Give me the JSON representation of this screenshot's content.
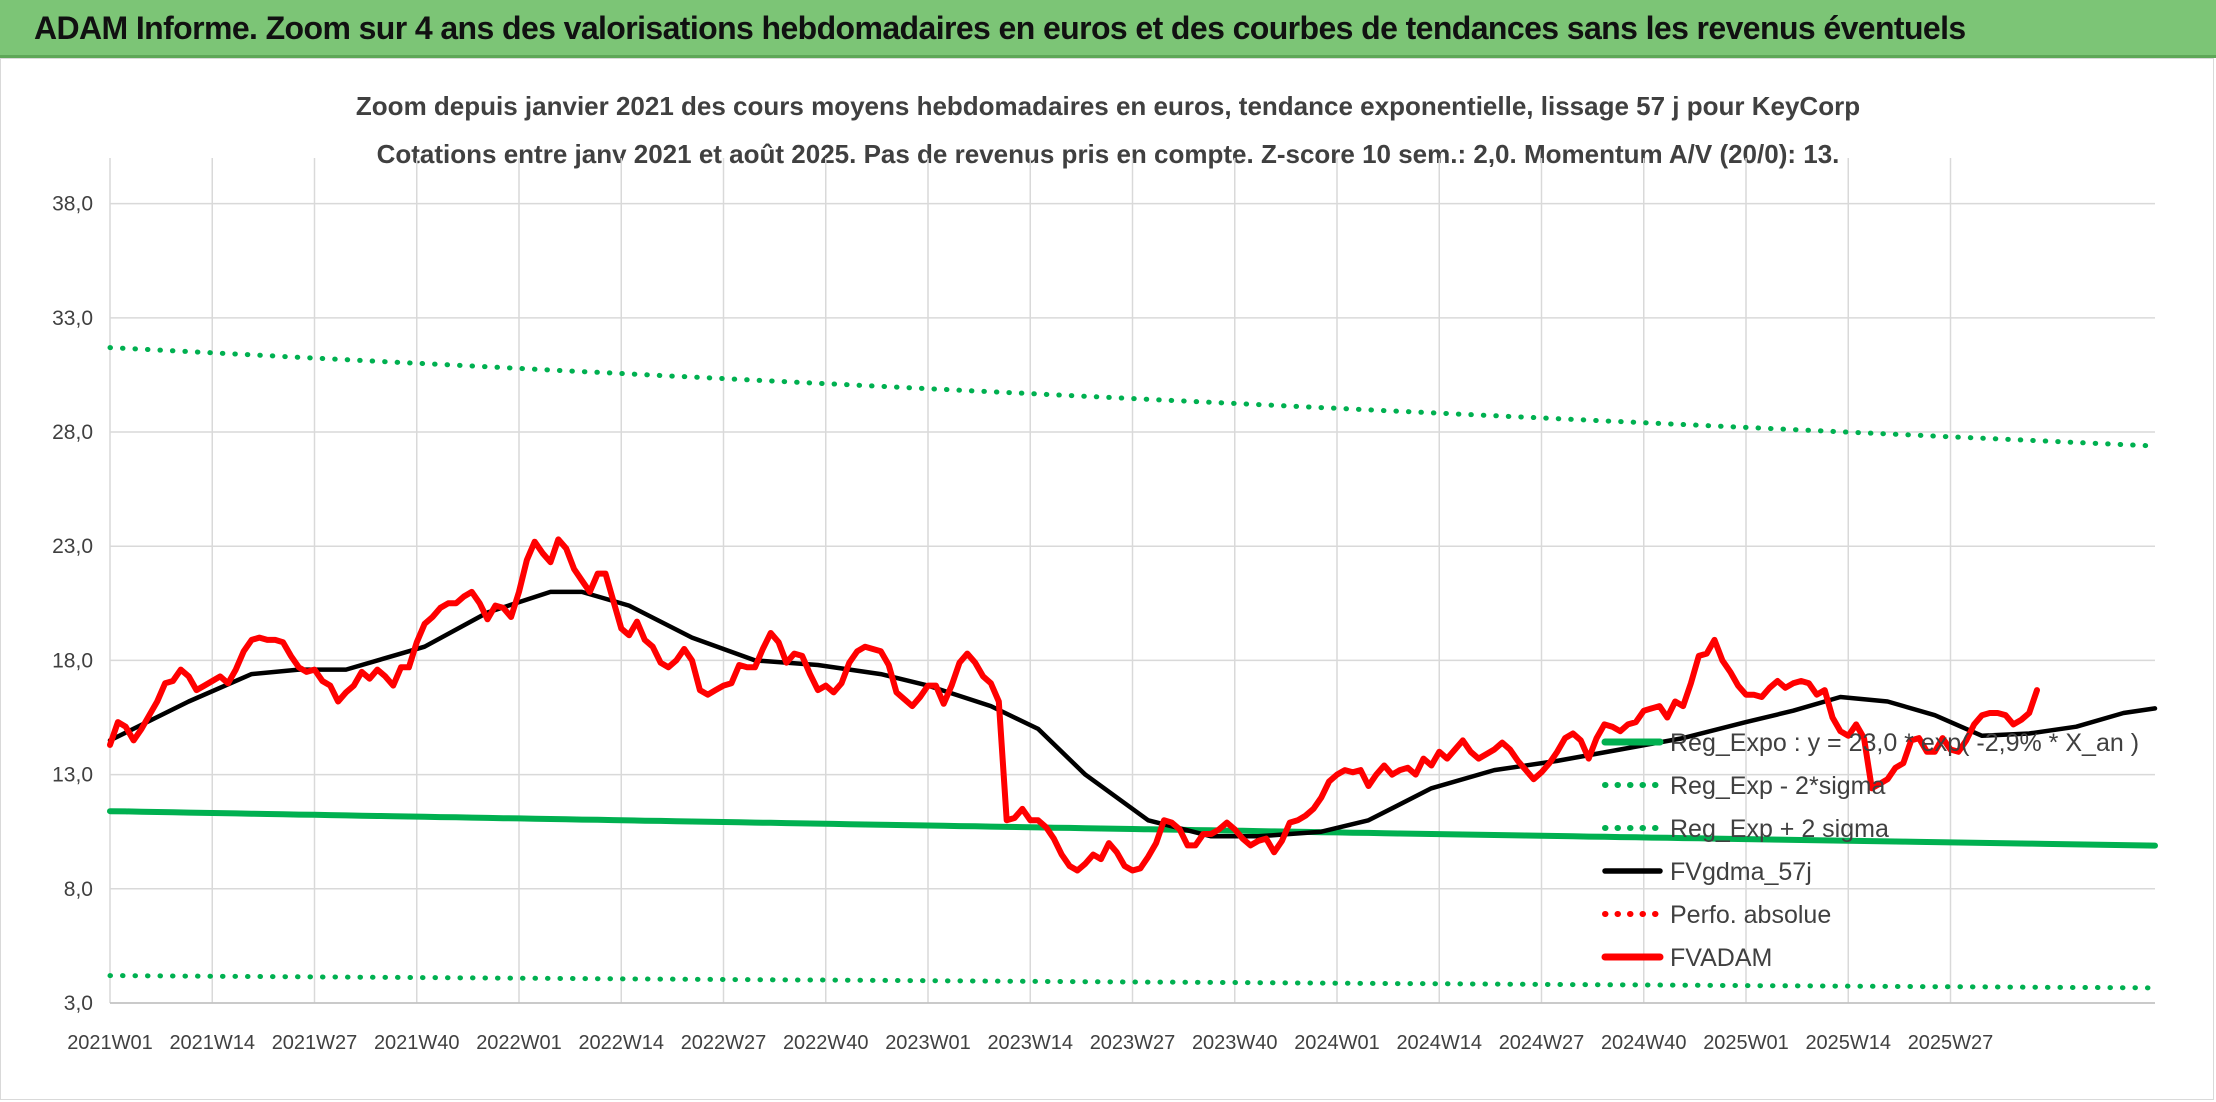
{
  "page": {
    "banner_title": "ADAM Informe. Zoom sur 4 ans des valorisations hebdomadaires en euros et des courbes de tendances sans les revenus éventuels"
  },
  "chart_data": {
    "type": "line",
    "title_line1": "Zoom depuis janvier 2021 des cours moyens hebdomadaires en euros, tendance exponentielle, lissage 57 j pour KeyCorp",
    "title_line2": "Cotations entre janv 2021 et août 2025. Pas de revenus pris en compte. Z-score 10 sem.: 2,0. Momentum A/V (20/0): 13.",
    "xlabel": "",
    "ylabel": "",
    "ylim": [
      3.0,
      40.0
    ],
    "y_ticks": [
      3.0,
      8.0,
      13.0,
      18.0,
      23.0,
      28.0,
      33.0,
      38.0
    ],
    "y_tick_labels": [
      "3,0",
      "8,0",
      "13,0",
      "18,0",
      "23,0",
      "28,0",
      "33,0",
      "38,0"
    ],
    "x_ticks": [
      "2021W01",
      "2021W14",
      "2021W27",
      "2021W40",
      "2022W01",
      "2022W14",
      "2022W27",
      "2022W40",
      "2023W01",
      "2023W14",
      "2023W27",
      "2023W40",
      "2024W01",
      "2024W14",
      "2024W27",
      "2024W40",
      "2025W01",
      "2025W14",
      "2025W27"
    ],
    "grid": true,
    "legend_position": "right",
    "series": [
      {
        "name": "Reg_Expo : y = 23,0 * exp( -2,9% * X_an )",
        "color": "#00b050",
        "style": "solid-thick",
        "keypoints": [
          [
            0,
            11.4
          ],
          [
            240,
            10.0
          ]
        ]
      },
      {
        "name": "Reg_Exp - 2*sigma",
        "color": "#00b050",
        "style": "dotted",
        "keypoints": [
          [
            0,
            4.2
          ],
          [
            240,
            3.7
          ]
        ]
      },
      {
        "name": "Reg_Exp + 2 sigma",
        "color": "#00b050",
        "style": "dotted",
        "keypoints": [
          [
            0,
            31.7
          ],
          [
            240,
            27.7
          ]
        ]
      },
      {
        "name": "FVgdma_57j",
        "color": "#000000",
        "style": "solid",
        "keypoints": [
          [
            0,
            14.5
          ],
          [
            10,
            16.2
          ],
          [
            18,
            17.4
          ],
          [
            24,
            17.6
          ],
          [
            30,
            17.6
          ],
          [
            40,
            18.6
          ],
          [
            48,
            20.1
          ],
          [
            56,
            21.0
          ],
          [
            60,
            21.0
          ],
          [
            66,
            20.4
          ],
          [
            74,
            19.0
          ],
          [
            82,
            18.0
          ],
          [
            90,
            17.8
          ],
          [
            98,
            17.4
          ],
          [
            104,
            16.9
          ],
          [
            112,
            16.0
          ],
          [
            118,
            15.0
          ],
          [
            124,
            13.0
          ],
          [
            132,
            11.0
          ],
          [
            140,
            10.3
          ],
          [
            146,
            10.3
          ],
          [
            150,
            10.4
          ],
          [
            154,
            10.5
          ],
          [
            160,
            11.0
          ],
          [
            168,
            12.4
          ],
          [
            176,
            13.2
          ],
          [
            184,
            13.6
          ],
          [
            192,
            14.1
          ],
          [
            200,
            14.6
          ],
          [
            208,
            15.3
          ],
          [
            214,
            15.8
          ],
          [
            220,
            16.4
          ],
          [
            226,
            16.2
          ],
          [
            232,
            15.6
          ],
          [
            238,
            14.7
          ],
          [
            244,
            14.8
          ],
          [
            250,
            15.1
          ],
          [
            256,
            15.7
          ],
          [
            260,
            15.9
          ]
        ]
      },
      {
        "name": "Perfo. absolue",
        "color": "#ff0000",
        "style": "dotted",
        "keypoints": []
      },
      {
        "name": "FVADAM",
        "color": "#ff0000",
        "style": "solid-thick",
        "keypoints": [
          [
            0,
            14.3
          ],
          [
            1,
            15.3
          ],
          [
            2,
            15.1
          ],
          [
            3,
            14.5
          ],
          [
            4,
            15.0
          ],
          [
            5,
            15.6
          ],
          [
            6,
            16.2
          ],
          [
            7,
            17.0
          ],
          [
            8,
            17.1
          ],
          [
            9,
            17.6
          ],
          [
            10,
            17.3
          ],
          [
            11,
            16.7
          ],
          [
            12,
            16.9
          ],
          [
            13,
            17.1
          ],
          [
            14,
            17.3
          ],
          [
            15,
            17.0
          ],
          [
            16,
            17.6
          ],
          [
            17,
            18.4
          ],
          [
            18,
            18.9
          ],
          [
            19,
            19.0
          ],
          [
            20,
            18.9
          ],
          [
            21,
            18.9
          ],
          [
            22,
            18.8
          ],
          [
            23,
            18.2
          ],
          [
            24,
            17.7
          ],
          [
            25,
            17.5
          ],
          [
            26,
            17.6
          ],
          [
            27,
            17.1
          ],
          [
            28,
            16.9
          ],
          [
            29,
            16.2
          ],
          [
            30,
            16.6
          ],
          [
            31,
            16.9
          ],
          [
            32,
            17.5
          ],
          [
            33,
            17.2
          ],
          [
            34,
            17.6
          ],
          [
            35,
            17.3
          ],
          [
            36,
            16.9
          ],
          [
            37,
            17.7
          ],
          [
            38,
            17.7
          ],
          [
            39,
            18.8
          ],
          [
            40,
            19.6
          ],
          [
            41,
            19.9
          ],
          [
            42,
            20.3
          ],
          [
            43,
            20.5
          ],
          [
            44,
            20.5
          ],
          [
            45,
            20.8
          ],
          [
            46,
            21.0
          ],
          [
            47,
            20.5
          ],
          [
            48,
            19.8
          ],
          [
            49,
            20.4
          ],
          [
            50,
            20.3
          ],
          [
            51,
            19.9
          ],
          [
            52,
            21.0
          ],
          [
            53,
            22.4
          ],
          [
            54,
            23.2
          ],
          [
            55,
            22.7
          ],
          [
            56,
            22.3
          ],
          [
            57,
            23.3
          ],
          [
            58,
            22.9
          ],
          [
            59,
            22.0
          ],
          [
            60,
            21.5
          ],
          [
            61,
            21.0
          ],
          [
            62,
            21.8
          ],
          [
            63,
            21.8
          ],
          [
            64,
            20.6
          ],
          [
            65,
            19.4
          ],
          [
            66,
            19.1
          ],
          [
            67,
            19.7
          ],
          [
            68,
            18.9
          ],
          [
            69,
            18.6
          ],
          [
            70,
            17.9
          ],
          [
            71,
            17.7
          ],
          [
            72,
            18.0
          ],
          [
            73,
            18.5
          ],
          [
            74,
            18.0
          ],
          [
            75,
            16.7
          ],
          [
            76,
            16.5
          ],
          [
            77,
            16.7
          ],
          [
            78,
            16.9
          ],
          [
            79,
            17.0
          ],
          [
            80,
            17.8
          ],
          [
            81,
            17.7
          ],
          [
            82,
            17.7
          ],
          [
            83,
            18.5
          ],
          [
            84,
            19.2
          ],
          [
            85,
            18.8
          ],
          [
            86,
            17.9
          ],
          [
            87,
            18.3
          ],
          [
            88,
            18.2
          ],
          [
            89,
            17.4
          ],
          [
            90,
            16.7
          ],
          [
            91,
            16.9
          ],
          [
            92,
            16.6
          ],
          [
            93,
            17.0
          ],
          [
            94,
            17.9
          ],
          [
            95,
            18.4
          ],
          [
            96,
            18.6
          ],
          [
            97,
            18.5
          ],
          [
            98,
            18.4
          ],
          [
            99,
            17.8
          ],
          [
            100,
            16.6
          ],
          [
            101,
            16.3
          ],
          [
            102,
            16.0
          ],
          [
            103,
            16.4
          ],
          [
            104,
            16.9
          ],
          [
            105,
            16.9
          ],
          [
            106,
            16.1
          ],
          [
            107,
            16.9
          ],
          [
            108,
            17.9
          ],
          [
            109,
            18.3
          ],
          [
            110,
            17.9
          ],
          [
            111,
            17.3
          ],
          [
            112,
            17.0
          ],
          [
            113,
            16.2
          ],
          [
            114,
            11.0
          ],
          [
            115,
            11.1
          ],
          [
            116,
            11.5
          ],
          [
            117,
            11.0
          ],
          [
            118,
            11.0
          ],
          [
            119,
            10.7
          ],
          [
            120,
            10.2
          ],
          [
            121,
            9.5
          ],
          [
            122,
            9.0
          ],
          [
            123,
            8.8
          ],
          [
            124,
            9.1
          ],
          [
            125,
            9.5
          ],
          [
            126,
            9.3
          ],
          [
            127,
            10.0
          ],
          [
            128,
            9.6
          ],
          [
            129,
            9.0
          ],
          [
            130,
            8.8
          ],
          [
            131,
            8.9
          ],
          [
            132,
            9.4
          ],
          [
            133,
            10.0
          ],
          [
            134,
            11.0
          ],
          [
            135,
            10.9
          ],
          [
            136,
            10.6
          ],
          [
            137,
            9.9
          ],
          [
            138,
            9.9
          ],
          [
            139,
            10.4
          ],
          [
            140,
            10.4
          ],
          [
            141,
            10.6
          ],
          [
            142,
            10.9
          ],
          [
            143,
            10.6
          ],
          [
            144,
            10.2
          ],
          [
            145,
            9.9
          ],
          [
            146,
            10.1
          ],
          [
            147,
            10.2
          ],
          [
            148,
            9.6
          ],
          [
            149,
            10.1
          ],
          [
            150,
            10.9
          ],
          [
            151,
            11.0
          ],
          [
            152,
            11.2
          ],
          [
            153,
            11.5
          ],
          [
            154,
            12.0
          ],
          [
            155,
            12.7
          ],
          [
            156,
            13.0
          ],
          [
            157,
            13.2
          ],
          [
            158,
            13.1
          ],
          [
            159,
            13.2
          ],
          [
            160,
            12.5
          ],
          [
            161,
            13.0
          ],
          [
            162,
            13.4
          ],
          [
            163,
            13.0
          ],
          [
            164,
            13.2
          ],
          [
            165,
            13.3
          ],
          [
            166,
            13.0
          ],
          [
            167,
            13.7
          ],
          [
            168,
            13.4
          ],
          [
            169,
            14.0
          ],
          [
            170,
            13.7
          ],
          [
            171,
            14.1
          ],
          [
            172,
            14.5
          ],
          [
            173,
            14.0
          ],
          [
            174,
            13.7
          ],
          [
            175,
            13.9
          ],
          [
            176,
            14.1
          ],
          [
            177,
            14.4
          ],
          [
            178,
            14.1
          ],
          [
            179,
            13.6
          ],
          [
            180,
            13.2
          ],
          [
            181,
            12.8
          ],
          [
            182,
            13.1
          ],
          [
            183,
            13.5
          ],
          [
            184,
            14.0
          ],
          [
            185,
            14.6
          ],
          [
            186,
            14.8
          ],
          [
            187,
            14.5
          ],
          [
            188,
            13.7
          ],
          [
            189,
            14.6
          ],
          [
            190,
            15.2
          ],
          [
            191,
            15.1
          ],
          [
            192,
            14.9
          ],
          [
            193,
            15.2
          ],
          [
            194,
            15.3
          ],
          [
            195,
            15.8
          ],
          [
            196,
            15.9
          ],
          [
            197,
            16.0
          ],
          [
            198,
            15.5
          ],
          [
            199,
            16.2
          ],
          [
            200,
            16.0
          ],
          [
            201,
            17.0
          ],
          [
            202,
            18.2
          ],
          [
            203,
            18.3
          ],
          [
            204,
            18.9
          ],
          [
            205,
            18.0
          ],
          [
            206,
            17.5
          ],
          [
            207,
            16.9
          ],
          [
            208,
            16.5
          ],
          [
            209,
            16.5
          ],
          [
            210,
            16.4
          ],
          [
            211,
            16.8
          ],
          [
            212,
            17.1
          ],
          [
            213,
            16.8
          ],
          [
            214,
            17.0
          ],
          [
            215,
            17.1
          ],
          [
            216,
            17.0
          ],
          [
            217,
            16.5
          ],
          [
            218,
            16.7
          ],
          [
            219,
            15.5
          ],
          [
            220,
            14.9
          ],
          [
            221,
            14.7
          ],
          [
            222,
            15.2
          ],
          [
            223,
            14.6
          ],
          [
            224,
            12.4
          ],
          [
            225,
            12.6
          ],
          [
            226,
            12.8
          ],
          [
            227,
            13.3
          ],
          [
            228,
            13.5
          ],
          [
            229,
            14.5
          ],
          [
            230,
            14.6
          ],
          [
            231,
            14.0
          ],
          [
            232,
            14.0
          ],
          [
            233,
            14.6
          ],
          [
            234,
            14.1
          ],
          [
            235,
            14.0
          ],
          [
            236,
            14.5
          ],
          [
            237,
            15.2
          ],
          [
            238,
            15.6
          ],
          [
            239,
            15.7
          ],
          [
            240,
            15.7
          ],
          [
            241,
            15.6
          ],
          [
            242,
            15.2
          ],
          [
            243,
            15.4
          ],
          [
            244,
            15.7
          ],
          [
            245,
            16.7
          ]
        ]
      }
    ]
  }
}
